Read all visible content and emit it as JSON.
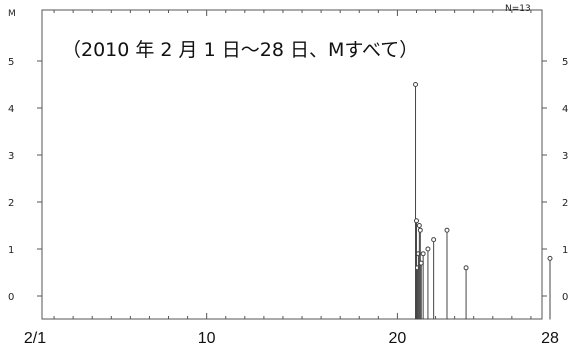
{
  "chart_data": {
    "type": "stem",
    "title": "",
    "subtitle": "（2010 年 2 月 1 日～28 日、Mすべて）",
    "ylabel": "M",
    "count_label": "N=13",
    "x_tick_labels": [
      {
        "day": 1,
        "label": "2/1"
      },
      {
        "day": 10,
        "label": "10"
      },
      {
        "day": 20,
        "label": "20"
      },
      {
        "day": 28,
        "label": "28"
      }
    ],
    "y_ticks": [
      0,
      1,
      2,
      3,
      4,
      5
    ],
    "xlim": [
      1,
      29
    ],
    "ylim": [
      -0.6,
      5.7
    ],
    "points": [
      {
        "x": 20.95,
        "y": 4.5
      },
      {
        "x": 21.0,
        "y": 1.6
      },
      {
        "x": 21.05,
        "y": 0.6
      },
      {
        "x": 21.1,
        "y": 0.9
      },
      {
        "x": 21.15,
        "y": 1.5
      },
      {
        "x": 21.2,
        "y": 1.4
      },
      {
        "x": 21.25,
        "y": 0.7
      },
      {
        "x": 21.35,
        "y": 0.9
      },
      {
        "x": 21.6,
        "y": 1.0
      },
      {
        "x": 21.9,
        "y": 1.2
      },
      {
        "x": 22.6,
        "y": 1.4
      },
      {
        "x": 23.6,
        "y": 0.6
      },
      {
        "x": 28.0,
        "y": 0.8
      }
    ]
  }
}
